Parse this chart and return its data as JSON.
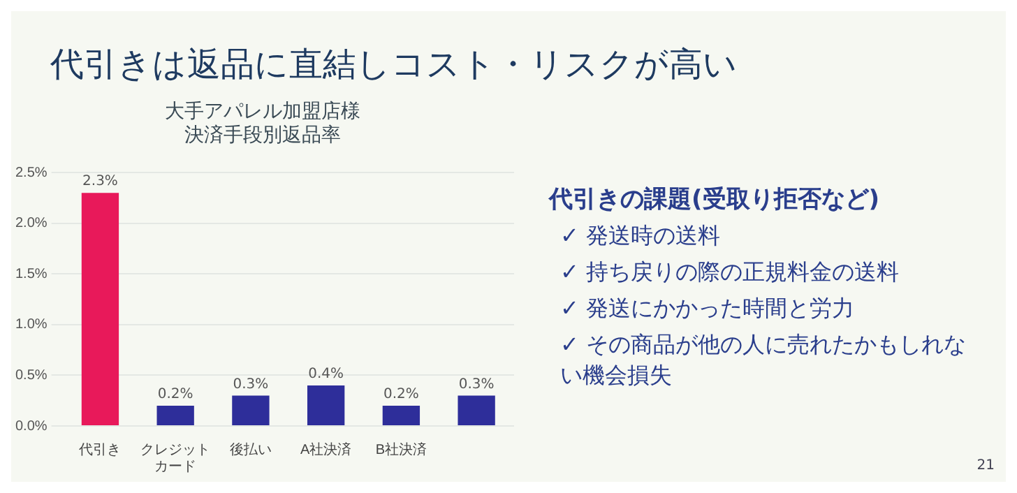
{
  "chart_data": {
    "type": "bar",
    "title": "代引きは返品に直結しコスト・リスクが高い",
    "subtitle": "大手アパレル加盟店様決済手段別返品率",
    "categories": [
      "代引き",
      "クレジットカード",
      "後払い",
      "A社決済",
      "B社決済",
      null
    ],
    "values": [
      2.3,
      0.2,
      0.3,
      0.4,
      0.2,
      0.3
    ],
    "colors": [
      "#e8195a",
      "#2e2e9a",
      "#2e2e9a",
      "#2e2e9a",
      "#2e2e9a",
      "#2e2e9a"
    ],
    "value_labels": [
      "2.3%",
      "0.2%",
      "0.3%",
      "0.4%",
      "0.2%",
      "0.3%"
    ],
    "ylim": [
      0,
      2.5
    ],
    "yticks": [
      {
        "value": 0,
        "label": "0.0%"
      },
      {
        "value": 0.5,
        "label": "0.5%"
      },
      {
        "value": 1,
        "label": "1.0%"
      },
      {
        "value": 1.5,
        "label": "1.5%"
      },
      {
        "value": 2,
        "label": "2.0%"
      },
      {
        "value": 2.5,
        "label": "2.5%"
      }
    ],
    "grid": "y",
    "legend": false,
    "annotations": [
      "代引きの課題(受取り拒否など)",
      "✓ 発送時の送料",
      "✓ 持ち戻りの際の正規料金の送料",
      "✓ 発送にかかった時間と労力",
      "✓ その商品が他の人に売れたかもしれない機会損失",
      "21"
    ]
  }
}
